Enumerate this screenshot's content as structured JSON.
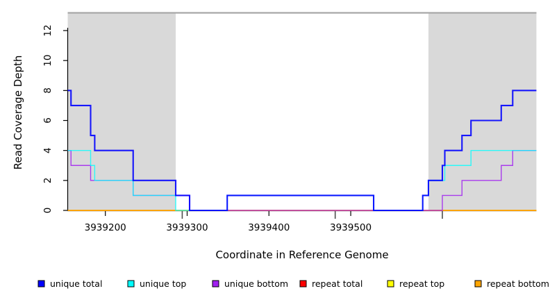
{
  "chart_data": {
    "type": "line",
    "subtype": "step-coverage-plot",
    "title": "",
    "xlabel": "Coordinate in Reference Genome",
    "ylabel": "Read Coverage Depth",
    "xlim": [
      3939154,
      3939727
    ],
    "ylim": [
      0,
      13.2
    ],
    "x_ticks": [
      3939200,
      3939300,
      3939400,
      3939500
    ],
    "y_ticks": [
      0,
      2,
      4,
      6,
      8,
      10,
      12
    ],
    "minor_marks_x": [
      3939294,
      3939481,
      3939612
    ],
    "grid": false,
    "legend_position": "bottom",
    "shaded_regions": [
      {
        "name": "repeat-region-left",
        "from": 3939154,
        "to": 3939286,
        "color": "#d9d9d9"
      },
      {
        "name": "repeat-region-right",
        "from": 3939595,
        "to": 3939727,
        "color": "#d9d9d9"
      }
    ],
    "top_boundary_line": {
      "y": 13.18,
      "color": "#a8a8a8"
    },
    "series": [
      {
        "name": "repeat total",
        "color": "#FF0000",
        "width": 1.4,
        "opacity": 1,
        "points": [
          [
            3939154,
            0
          ],
          [
            3939727,
            0
          ]
        ]
      },
      {
        "name": "repeat top",
        "color": "#FFFF00",
        "width": 1.4,
        "opacity": 1,
        "points": [
          [
            3939154,
            0
          ],
          [
            3939727,
            0
          ]
        ]
      },
      {
        "name": "repeat bottom",
        "color": "#FFA500",
        "width": 1.7,
        "opacity": 1,
        "points": [
          [
            3939154,
            0
          ],
          [
            3939727,
            0
          ]
        ]
      },
      {
        "name": "unique bottom",
        "color": "#A020F0",
        "width": 1.4,
        "opacity": 0.85,
        "points": [
          [
            3939154,
            4
          ],
          [
            3939158,
            3
          ],
          [
            3939182,
            2
          ],
          [
            3939234,
            1
          ],
          [
            3939303,
            0
          ],
          [
            3939612,
            1
          ],
          [
            3939636,
            2
          ],
          [
            3939684,
            3
          ],
          [
            3939698,
            4
          ],
          [
            3939727,
            4
          ]
        ]
      },
      {
        "name": "unique top",
        "color": "#00FFFF",
        "width": 1.4,
        "opacity": 0.8,
        "points": [
          [
            3939154,
            4
          ],
          [
            3939182,
            3
          ],
          [
            3939187,
            2
          ],
          [
            3939234,
            1
          ],
          [
            3939286,
            0
          ],
          [
            3939349,
            1
          ],
          [
            3939528,
            0
          ],
          [
            3939588,
            1
          ],
          [
            3939595,
            2
          ],
          [
            3939615,
            3
          ],
          [
            3939647,
            4
          ],
          [
            3939727,
            4
          ]
        ]
      },
      {
        "name": "unique total",
        "color": "#0000FF",
        "width": 2.1,
        "opacity": 0.9,
        "points": [
          [
            3939154,
            8
          ],
          [
            3939158,
            7
          ],
          [
            3939182,
            5
          ],
          [
            3939187,
            4
          ],
          [
            3939234,
            2
          ],
          [
            3939286,
            1
          ],
          [
            3939303,
            0
          ],
          [
            3939349,
            1
          ],
          [
            3939528,
            0
          ],
          [
            3939588,
            1
          ],
          [
            3939595,
            2
          ],
          [
            3939612,
            3
          ],
          [
            3939615,
            4
          ],
          [
            3939636,
            5
          ],
          [
            3939647,
            6
          ],
          [
            3939684,
            7
          ],
          [
            3939698,
            8
          ],
          [
            3939727,
            8
          ]
        ]
      }
    ],
    "legend": [
      {
        "label": "unique total",
        "color": "#0000FF"
      },
      {
        "label": "unique top",
        "color": "#00FFFF"
      },
      {
        "label": "unique bottom",
        "color": "#A020F0"
      },
      {
        "label": "repeat total",
        "color": "#FF0000"
      },
      {
        "label": "repeat top",
        "color": "#FFFF00"
      },
      {
        "label": "repeat bottom",
        "color": "#FFA500"
      }
    ]
  }
}
